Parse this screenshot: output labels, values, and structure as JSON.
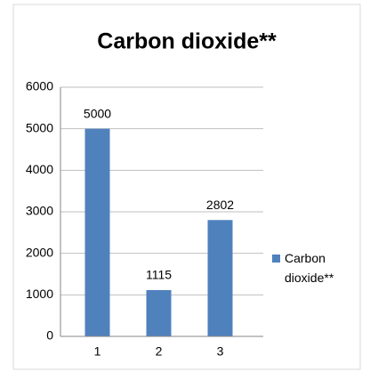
{
  "chart_data": {
    "type": "bar",
    "title": "Carbon dioxide**",
    "categories": [
      "1",
      "2",
      "3"
    ],
    "series": [
      {
        "name": "Carbon dioxide**",
        "color": "#4f81bd",
        "values": [
          5000,
          1115,
          2802
        ]
      }
    ],
    "ylim": [
      0,
      6000
    ],
    "yticks": [
      0,
      1000,
      2000,
      3000,
      4000,
      5000,
      6000
    ],
    "grid": true,
    "legend": "right"
  }
}
